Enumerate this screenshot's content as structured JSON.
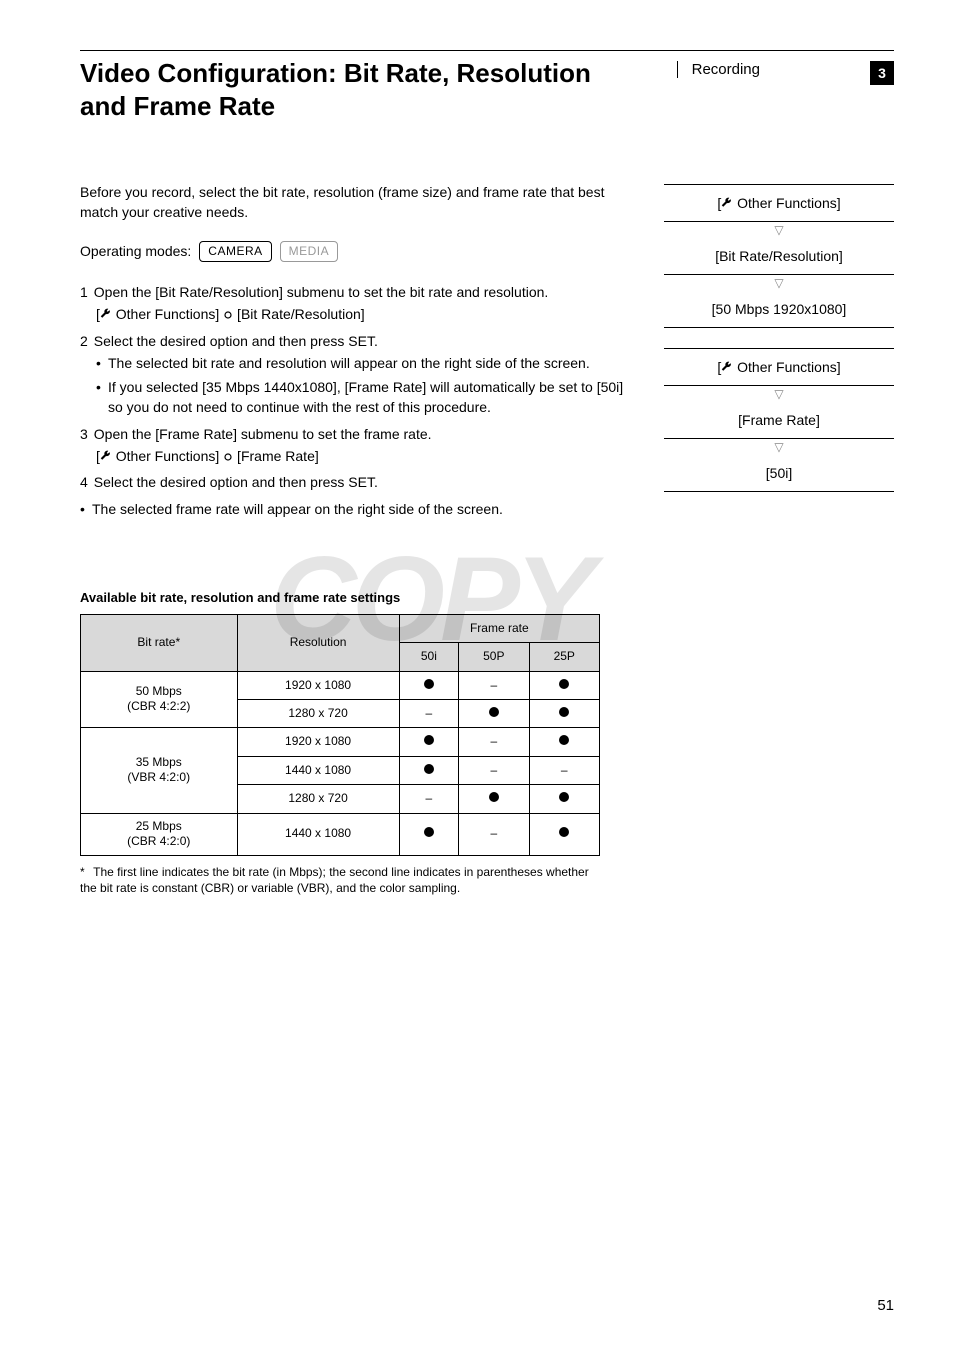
{
  "header": {
    "title_line1": "Video Configuration: Bit Rate, Resolution",
    "title_line2": "and Frame Rate",
    "section": "Recording",
    "chapter": "3"
  },
  "intro": "Before you record, select the bit rate, resolution (frame size) and frame rate that best match your creative needs.",
  "op_modes": {
    "label": "Operating modes:",
    "camera": "CAMERA",
    "media": "MEDIA"
  },
  "menu_path": {
    "of_label": " Other Functions]",
    "bitres": "[Bit Rate/Resolution]",
    "bitres_default": "[50 Mbps 1920x1080]",
    "framerate": "[Frame Rate]",
    "fr_default": "[50i]"
  },
  "steps": {
    "s1_num": "1",
    "s1_title": "Open the [Bit Rate/Resolution] submenu to set the bit rate and resolution.",
    "s1_sub_a": " Other Functions] ",
    "s1_sub_b": " [Bit Rate/Resolution]",
    "s2_num": "2",
    "s2_title": "Select the desired option and then press SET.",
    "s2_b1": "The selected bit rate and resolution will appear on the right side of the screen.",
    "s2_b2": "If you selected [35 Mbps 1440x1080], [Frame Rate] will automatically be set to [50i] so you do not need to continue with the rest of this procedure.",
    "s3_num": "3",
    "s3_title": "Open the [Frame Rate] submenu to set the frame rate.",
    "s3_sub_a": " Other Functions] ",
    "s3_sub_b": " [Frame Rate]",
    "s4_num": "4",
    "s4_title": "Select the desired option and then press SET.",
    "s4_after": "The selected frame rate will appear on the right side of the screen."
  },
  "table": {
    "title": "Available bit rate, resolution and frame rate settings",
    "h_bitrate": "Bit rate*",
    "h_resolution": "Resolution",
    "h_framerate": "Frame rate",
    "h_50i": "50i",
    "h_50p": "50P",
    "h_25p": "25P",
    "r1_br1": "50 Mbps",
    "r1_br2": "(CBR 4:2:2)",
    "r1a_res": "1920 x 1080",
    "r1b_res": "1280 x 720",
    "r2_br1": "35 Mbps",
    "r2_br2": "(VBR 4:2:0)",
    "r2a_res": "1920 x 1080",
    "r2b_res": "1440 x 1080",
    "r2c_res": "1280 x 720",
    "r3_br1": "25 Mbps",
    "r3_br2": "(CBR 4:2:0)",
    "r3a_res": "1440 x 1080",
    "matrix": {
      "r1a": [
        "dot",
        "dash",
        "dot"
      ],
      "r1b": [
        "dash",
        "dot",
        "dot"
      ],
      "r2a": [
        "dot",
        "dash",
        "dot"
      ],
      "r2b": [
        "dot",
        "dash",
        "dash"
      ],
      "r2c": [
        "dash",
        "dot",
        "dot"
      ],
      "r3a": [
        "dot",
        "dash",
        "dot"
      ]
    }
  },
  "footnote": "The first line indicates the bit rate (in Mbps); the second line indicates in parentheses whether the bit rate is constant (CBR) or variable (VBR), and the color sampling.",
  "footnote_marker": "*",
  "page_number": "51",
  "watermark": "COPY",
  "colors": {
    "text": "#000000",
    "bg": "#ffffff",
    "th_bg": "#d9d9d9",
    "dim": "#999999",
    "watermark": "rgba(0,0,0,0.10)"
  }
}
